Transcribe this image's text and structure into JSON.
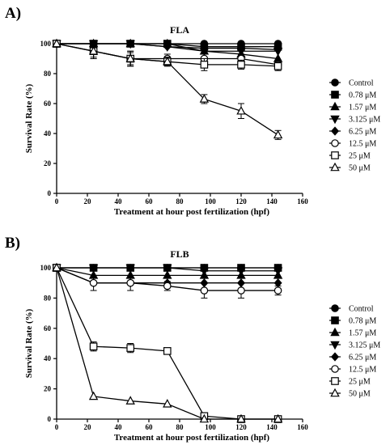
{
  "colors": {
    "ink": "#000000",
    "background": "#ffffff"
  },
  "chart_data": [
    {
      "type": "line",
      "panel_label": "A)",
      "title": "FLA",
      "xlabel": "Treatment at hour post fertilization (hpf)",
      "ylabel": "Survival Rate (%)",
      "xlim": [
        0,
        160
      ],
      "ylim": [
        0,
        100
      ],
      "xticks": [
        0,
        20,
        40,
        60,
        80,
        100,
        120,
        140,
        160
      ],
      "yticks": [
        0,
        20,
        40,
        60,
        80,
        100
      ],
      "x": [
        0,
        24,
        48,
        72,
        96,
        120,
        144
      ],
      "grid": false,
      "legend_position": "right",
      "series": [
        {
          "name": "Control",
          "marker": "circle-filled",
          "values": [
            100,
            100,
            100,
            100,
            100,
            100,
            100
          ],
          "errors": [
            0,
            0,
            0,
            0,
            0,
            0,
            0
          ]
        },
        {
          "name": "0.78 μM",
          "marker": "square-filled",
          "values": [
            100,
            100,
            100,
            100,
            98,
            98,
            98
          ],
          "errors": [
            0,
            0,
            0,
            0,
            0,
            0,
            0
          ]
        },
        {
          "name": "1.57 μM",
          "marker": "triangle-filled",
          "values": [
            100,
            100,
            100,
            100,
            95,
            93,
            90
          ],
          "errors": [
            0,
            0,
            0,
            0,
            0,
            0,
            0
          ]
        },
        {
          "name": "3.125 μM",
          "marker": "triangle-down",
          "values": [
            100,
            100,
            100,
            98,
            95,
            95,
            95
          ],
          "errors": [
            0,
            0,
            0,
            0,
            0,
            0,
            0
          ]
        },
        {
          "name": "6.25 μM",
          "marker": "diamond-filled",
          "values": [
            100,
            100,
            100,
            98,
            97,
            97,
            96
          ],
          "errors": [
            0,
            0,
            0,
            0,
            0,
            0,
            0
          ]
        },
        {
          "name": "12.5 μM",
          "marker": "circle-open",
          "values": [
            100,
            95,
            90,
            90,
            90,
            90,
            86
          ],
          "errors": [
            0,
            4,
            4,
            3,
            3,
            3,
            2
          ]
        },
        {
          "name": "25 μM",
          "marker": "square-open",
          "values": [
            100,
            95,
            90,
            88,
            86,
            86,
            85
          ],
          "errors": [
            0,
            5,
            5,
            3,
            4,
            3,
            3
          ]
        },
        {
          "name": "50 μM",
          "marker": "triangle-open",
          "values": [
            100,
            95,
            90,
            88,
            63,
            55,
            39
          ],
          "errors": [
            0,
            5,
            5,
            3,
            3,
            5,
            3
          ]
        }
      ]
    },
    {
      "type": "line",
      "panel_label": "B)",
      "title": "FLB",
      "xlabel": "Treatment at hour post fertilization (hpf)",
      "ylabel": "Survival Rate (%)",
      "xlim": [
        0,
        160
      ],
      "ylim": [
        0,
        100
      ],
      "xticks": [
        0,
        20,
        40,
        60,
        80,
        100,
        120,
        140,
        160
      ],
      "yticks": [
        0,
        20,
        40,
        60,
        80,
        100
      ],
      "x": [
        0,
        24,
        48,
        72,
        96,
        120,
        144
      ],
      "grid": false,
      "legend_position": "right",
      "series": [
        {
          "name": "Control",
          "marker": "circle-filled",
          "values": [
            100,
            100,
            100,
            100,
            100,
            100,
            100
          ],
          "errors": [
            0,
            0,
            0,
            0,
            0,
            0,
            0
          ]
        },
        {
          "name": "0.78 μM",
          "marker": "square-filled",
          "values": [
            100,
            100,
            100,
            100,
            100,
            100,
            100
          ],
          "errors": [
            0,
            0,
            0,
            0,
            0,
            0,
            0
          ]
        },
        {
          "name": "1.57 μM",
          "marker": "triangle-filled",
          "values": [
            100,
            95,
            95,
            95,
            95,
            95,
            95
          ],
          "errors": [
            0,
            0,
            0,
            0,
            0,
            0,
            0
          ]
        },
        {
          "name": "3.125 μM",
          "marker": "triangle-down",
          "values": [
            100,
            100,
            100,
            100,
            98,
            98,
            98
          ],
          "errors": [
            0,
            0,
            0,
            0,
            0,
            0,
            0
          ]
        },
        {
          "name": "6.25 μM",
          "marker": "diamond-filled",
          "values": [
            100,
            90,
            90,
            90,
            90,
            90,
            90
          ],
          "errors": [
            0,
            0,
            0,
            0,
            0,
            0,
            0
          ]
        },
        {
          "name": "12.5 μM",
          "marker": "circle-open",
          "values": [
            100,
            90,
            90,
            88,
            85,
            85,
            85
          ],
          "errors": [
            0,
            5,
            5,
            3,
            5,
            5,
            3
          ]
        },
        {
          "name": "25 μM",
          "marker": "square-open",
          "values": [
            100,
            48,
            47,
            45,
            2,
            0,
            0
          ],
          "errors": [
            0,
            3,
            3,
            0,
            0,
            0,
            0
          ]
        },
        {
          "name": "50 μM",
          "marker": "triangle-open",
          "values": [
            100,
            15,
            12,
            10,
            0,
            0,
            0
          ],
          "errors": [
            0,
            0,
            0,
            0,
            0,
            0,
            0
          ]
        }
      ]
    }
  ]
}
